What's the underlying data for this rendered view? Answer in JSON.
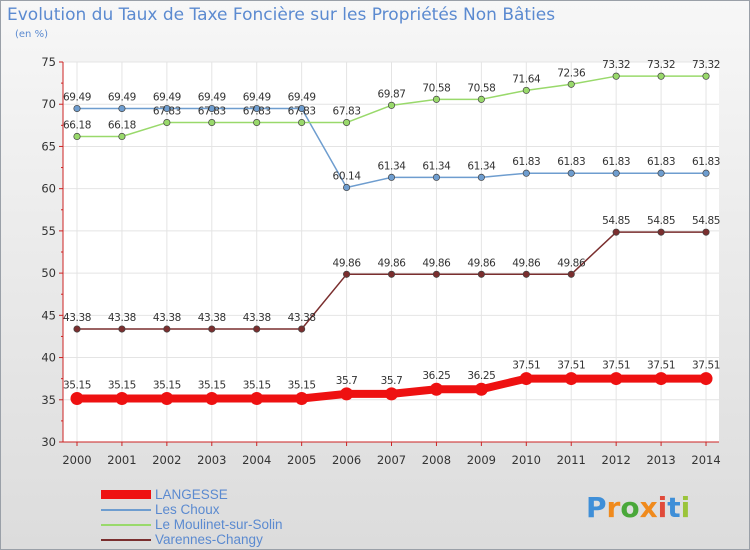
{
  "chart_data": {
    "type": "line",
    "title": "Evolution du Taux de Taxe Foncière sur les Propriétés Non Bâties",
    "ylabel": "(en %)",
    "xlabel": "",
    "categories": [
      "2000",
      "2001",
      "2002",
      "2003",
      "2004",
      "2005",
      "2006",
      "2007",
      "2008",
      "2009",
      "2010",
      "2011",
      "2012",
      "2013",
      "2014"
    ],
    "ylim": [
      30,
      75
    ],
    "yticks": [
      30,
      35,
      40,
      45,
      50,
      55,
      60,
      65,
      70,
      75
    ],
    "grid": true,
    "legend_position": "bottom-left",
    "series": [
      {
        "name": "Les Choux",
        "color": "#6e9dcf",
        "values": [
          69.49,
          69.49,
          69.49,
          69.49,
          69.49,
          69.49,
          60.14,
          61.34,
          61.34,
          61.34,
          61.83,
          61.83,
          61.83,
          61.83,
          61.83
        ],
        "labels": [
          "69.49",
          "69.49",
          "69.49",
          "69.49",
          "69.49",
          "69.49",
          "60.14",
          "61.34",
          "61.34",
          "61.34",
          "61.83",
          "61.83",
          "61.83",
          "61.83",
          "61.83"
        ]
      },
      {
        "name": "Le Moulinet-sur-Solin",
        "color": "#99d96b",
        "values": [
          66.18,
          66.18,
          67.83,
          67.83,
          67.83,
          67.83,
          67.83,
          69.87,
          70.58,
          70.58,
          71.64,
          72.36,
          73.32,
          73.32,
          73.32
        ],
        "labels": [
          "66.18",
          "66.18",
          "67.83",
          "67.83",
          "67.83",
          "67.83",
          "67.83",
          "69.87",
          "70.58",
          "70.58",
          "71.64",
          "72.36",
          "73.32",
          "73.32",
          "73.32"
        ]
      },
      {
        "name": "Varennes-Changy",
        "color": "#7a2e2e",
        "values": [
          43.38,
          43.38,
          43.38,
          43.38,
          43.38,
          43.38,
          49.86,
          49.86,
          49.86,
          49.86,
          49.86,
          49.86,
          54.85,
          54.85,
          54.85
        ],
        "labels": [
          "43.38",
          "43.38",
          "43.38",
          "43.38",
          "43.38",
          "43.38",
          "49.86",
          "49.86",
          "49.86",
          "49.86",
          "49.86",
          "49.86",
          "54.85",
          "54.85",
          "54.85"
        ]
      },
      {
        "name": "LANGESSE",
        "color": "#ee1111",
        "values": [
          35.15,
          35.15,
          35.15,
          35.15,
          35.15,
          35.15,
          35.7,
          35.7,
          36.25,
          36.25,
          37.51,
          37.51,
          37.51,
          37.51,
          37.51
        ],
        "labels": [
          "35.15",
          "35.15",
          "35.15",
          "35.15",
          "35.15",
          "35.15",
          "35.7",
          "35.7",
          "36.25",
          "36.25",
          "37.51",
          "37.51",
          "37.51",
          "37.51",
          "37.51"
        ]
      }
    ]
  },
  "legend": {
    "items": [
      {
        "label": "LANGESSE",
        "color": "#ee1111"
      },
      {
        "label": "Les Choux",
        "color": "#6e9dcf"
      },
      {
        "label": "Le Moulinet-sur-Solin",
        "color": "#99d96b"
      },
      {
        "label": "Varennes-Changy",
        "color": "#7a2e2e"
      }
    ]
  },
  "logo": {
    "letters": [
      "P",
      "r",
      "o",
      "x",
      "i",
      "t",
      "i"
    ],
    "colors": [
      "#3f8fd8",
      "#f08a1c",
      "#4aa83a",
      "#f08a1c",
      "#e04a3a",
      "#3f8fd8",
      "#9bc43a"
    ]
  }
}
